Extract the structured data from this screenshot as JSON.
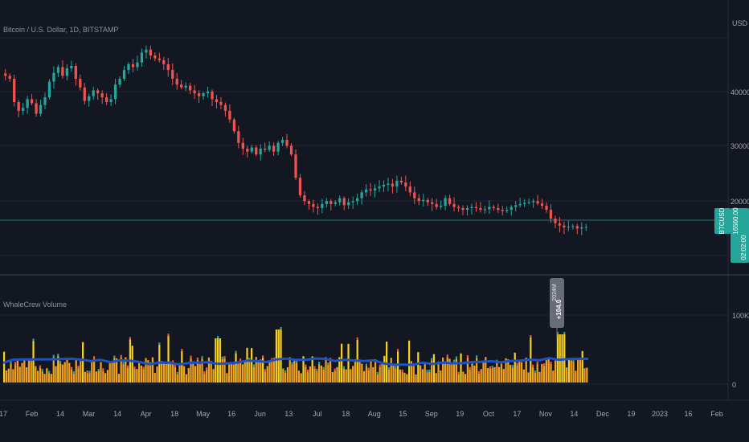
{
  "header": {
    "symbol_title": "Bitcoin / U.S. Dollar, 1D, BITSTAMP",
    "currency": "USD"
  },
  "price_pane": {
    "y_ticks": [
      "40000.00",
      "30000.00",
      "20000.00"
    ],
    "symbol_badge": "BTCUSD",
    "last_price": "16560.00",
    "countdown": "02:02:00"
  },
  "volume_pane": {
    "title": "WhaleCrew Volume",
    "y_ticks": [
      "100K",
      "0"
    ],
    "marker_label_top": "2024M",
    "marker_label_value": "+104.0"
  },
  "x_axis": {
    "labels": [
      "17",
      "Feb",
      "14",
      "Mar",
      "14",
      "Apr",
      "18",
      "May",
      "16",
      "Jun",
      "13",
      "Jul",
      "18",
      "Aug",
      "15",
      "Sep",
      "19",
      "Oct",
      "17",
      "Nov",
      "14",
      "Dec",
      "19",
      "2023",
      "16",
      "Feb"
    ]
  },
  "colors": {
    "background": "#131722",
    "up": "#26a69a",
    "down": "#ef5350",
    "volume_base": "#f0a020",
    "volume_spike": "#f5d020",
    "volume_ma": "#1e50c8",
    "price_line": "#26a69a"
  },
  "chart_data": {
    "type": "candlestick",
    "x_start": "2022-01-17",
    "y_range": [
      10000,
      50000
    ],
    "closes": [
      42500,
      42000,
      38000,
      36500,
      37000,
      38500,
      37800,
      36000,
      37500,
      38800,
      41500,
      43000,
      44000,
      42500,
      43800,
      44200,
      42000,
      40500,
      38200,
      39000,
      40000,
      39500,
      38800,
      38000,
      38500,
      41000,
      42000,
      43500,
      44500,
      44000,
      44800,
      46500,
      47000,
      46000,
      45500,
      45200,
      44500,
      43500,
      42000,
      41000,
      40500,
      40800,
      40000,
      39500,
      39000,
      39500,
      39800,
      38500,
      38000,
      37500,
      36500,
      35000,
      33000,
      31000,
      30000,
      29500,
      30200,
      29000,
      30000,
      29800,
      30500,
      29500,
      31000,
      31500,
      30500,
      29000,
      25000,
      22000,
      21000,
      20500,
      20000,
      19800,
      20500,
      21000,
      20500,
      20800,
      21500,
      20300,
      20800,
      21000,
      21500,
      22500,
      23000,
      22800,
      23200,
      23500,
      23800,
      24000,
      23500,
      24500,
      24200,
      23500,
      22500,
      21500,
      21000,
      21200,
      20800,
      20500,
      20000,
      20200,
      21500,
      20500,
      20000,
      19800,
      19500,
      19800,
      20000,
      19800,
      19500,
      19600,
      20000,
      19800,
      19500,
      19300,
      19500,
      20000,
      20300,
      20500,
      20700,
      20800,
      21000,
      20600,
      20200,
      19500,
      18000,
      17200,
      16800,
      16500,
      16600,
      16700,
      16300,
      16500,
      16560
    ],
    "volume_ma_level": 0.32,
    "volume_spike_marker": {
      "label": "+104.0",
      "near": "2022-11-09"
    },
    "y_tick_values": [
      40000,
      30000,
      20000
    ],
    "last_value": 16560
  }
}
